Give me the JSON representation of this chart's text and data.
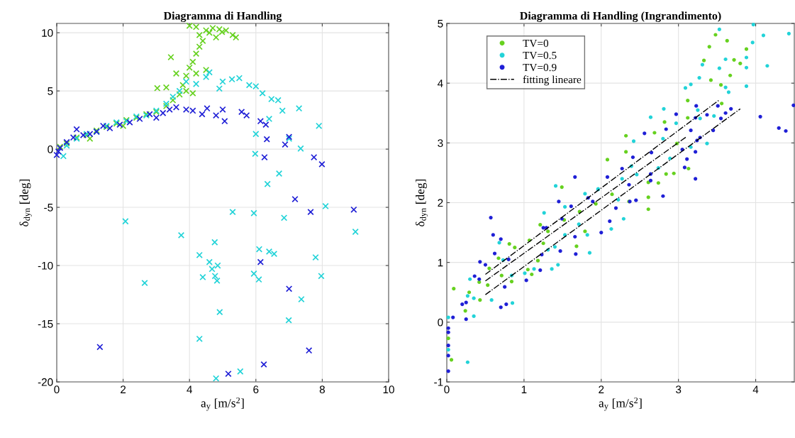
{
  "chart_data": [
    {
      "type": "scatter",
      "title": "Diagramma di Handling",
      "xlabel": "a$_{y}$ [m/s$^{2}$]",
      "ylabel": "δ$_{dyn}$ [deg]",
      "xlim": [
        0,
        10
      ],
      "ylim": [
        -20,
        10.8
      ],
      "xticks": [
        0,
        2,
        4,
        6,
        8,
        10
      ],
      "yticks": [
        -20,
        -15,
        -10,
        -5,
        0,
        5,
        10
      ],
      "grid": true,
      "legend": false,
      "marker": "cross",
      "series": [
        {
          "color": "#66d11f",
          "x": [
            0.1,
            0.3,
            0.6,
            0.9,
            1.0,
            1.2,
            1.5,
            1.8,
            2.0,
            2.1,
            2.4,
            2.7,
            3.0,
            3.03,
            3.3,
            3.3,
            3.44,
            3.5,
            3.6,
            3.7,
            3.8,
            3.9,
            3.9,
            4.0,
            4.0,
            4.1,
            4.1,
            4.2,
            4.2,
            4.2,
            4.3,
            4.3,
            4.4,
            4.5,
            4.5,
            4.6,
            4.7,
            4.8,
            4.9,
            4.98,
            5.1,
            5.3,
            5.4
          ],
          "values": [
            0.2,
            0.5,
            1.0,
            1.2,
            0.9,
            1.6,
            1.9,
            2.2,
            2.0,
            2.5,
            2.7,
            3.0,
            3.2,
            5.24,
            3.7,
            5.3,
            7.9,
            4.2,
            6.5,
            4.7,
            5.5,
            6.3,
            5.0,
            7.0,
            10.6,
            7.5,
            4.8,
            8.2,
            10.5,
            6.5,
            8.8,
            9.8,
            9.3,
            10.2,
            6.8,
            10.0,
            10.4,
            9.6,
            10.3,
            10.06,
            10.2,
            9.8,
            9.6
          ]
        },
        {
          "color": "#22d3d8",
          "x": [
            0.2,
            0.3,
            0.6,
            0.9,
            1.2,
            1.5,
            1.8,
            2.1,
            2.4,
            2.7,
            3.0,
            3.3,
            3.5,
            3.7,
            3.9,
            4.2,
            4.5,
            4.6,
            4.9,
            5.0,
            5.28,
            5.5,
            5.8,
            6.0,
            6.2,
            6.47,
            6.67,
            6.8,
            7.3,
            6.4,
            7.9,
            6.0,
            7.0,
            7.35,
            5.98,
            6.7,
            6.35,
            8.1,
            5.3,
            5.94,
            6.85,
            9.0,
            4.76,
            4.3,
            6.1,
            6.4,
            6.55,
            7.8,
            4.6,
            4.85,
            4.68,
            4.4,
            4.77,
            4.83,
            5.94,
            6.09,
            7.97,
            7.37,
            4.91,
            6.99,
            4.3,
            5.53,
            2.07,
            2.65,
            3.75,
            4.8
          ],
          "values": [
            -0.6,
            0.3,
            0.9,
            1.3,
            1.5,
            2.0,
            2.3,
            2.4,
            2.8,
            2.9,
            3.3,
            3.9,
            4.5,
            5.0,
            5.8,
            5.6,
            6.2,
            6.6,
            5.2,
            5.8,
            6.0,
            6.1,
            5.5,
            5.4,
            4.8,
            4.3,
            4.2,
            3.3,
            3.5,
            2.6,
            2.0,
            1.3,
            0.9,
            0.05,
            -0.4,
            -2.1,
            -3.0,
            -4.9,
            -5.4,
            -5.5,
            -5.9,
            -7.1,
            -8.0,
            -9.1,
            -8.6,
            -8.8,
            -9.0,
            -9.3,
            -9.7,
            -10.0,
            -10.3,
            -11.0,
            -10.9,
            -11.3,
            -10.7,
            -11.2,
            -10.9,
            -12.9,
            -14.0,
            -14.7,
            -16.3,
            -19.1,
            -6.2,
            -11.5,
            -7.4,
            -19.7
          ]
        },
        {
          "color": "#1f1fd6",
          "x": [
            0.0,
            0.05,
            0.1,
            0.3,
            0.5,
            0.6,
            0.8,
            1.0,
            1.2,
            1.4,
            1.6,
            1.9,
            2.2,
            2.5,
            2.8,
            3.0,
            3.2,
            3.4,
            3.6,
            3.9,
            4.1,
            4.38,
            4.53,
            4.8,
            5.0,
            5.06,
            5.57,
            5.72,
            6.14,
            6.3,
            6.33,
            7.0,
            6.88,
            6.26,
            7.75,
            7.99,
            7.18,
            7.65,
            8.95,
            6.14,
            7.0,
            7.6,
            6.24,
            5.17,
            1.3
          ],
          "values": [
            -0.5,
            -0.2,
            0.1,
            0.6,
            1.0,
            1.7,
            1.2,
            1.3,
            1.5,
            2.0,
            1.8,
            2.1,
            2.3,
            2.6,
            3.0,
            2.7,
            3.1,
            3.4,
            3.6,
            3.4,
            3.3,
            3.0,
            3.5,
            2.9,
            3.4,
            2.4,
            3.2,
            2.9,
            2.4,
            2.1,
            0.85,
            1.05,
            0.4,
            -0.7,
            -0.7,
            -1.3,
            -4.3,
            -5.4,
            -5.2,
            -9.7,
            -12.0,
            -17.3,
            -18.5,
            -19.3,
            -17.0
          ]
        }
      ]
    },
    {
      "type": "scatter",
      "title": "Diagramma di Handling (Ingrandimento)",
      "xlabel": "a$_{y}$ [m/s$^{2}$]",
      "ylabel": "δ$_{dyn}$ [deg]",
      "xlim": [
        0,
        4.5
      ],
      "ylim": [
        -1,
        5
      ],
      "xticks": [
        0,
        1,
        2,
        3,
        4
      ],
      "yticks": [
        -1,
        0,
        1,
        2,
        3,
        4,
        5
      ],
      "grid": true,
      "legend": "top left",
      "series": [
        {
          "name": "TV=0",
          "marker": "circle",
          "color": "#66d11f",
          "x": [
            3.48,
            3.4,
            3.63,
            3.33,
            3.72,
            3.88,
            3.8,
            3.42,
            3.55,
            3.67,
            3.12,
            3.12,
            2.98,
            3.56,
            2.82,
            2.69,
            2.32,
            2.32,
            2.08,
            2.94,
            2.84,
            2.74,
            3.13,
            2.61,
            1.49,
            0.81,
            0.88,
            0.55,
            0.42,
            0.53,
            0.84,
            0.71,
            0.67,
            0.43,
            0.29,
            0.24,
            0.09,
            0.06,
            0.02,
            1.07,
            1.21,
            1.31,
            1.25,
            1.18,
            1.1,
            1.05,
            1.68,
            1.79,
            1.72,
            1.52,
            2.36,
            2.61,
            2.61,
            2.14,
            1.93
          ],
          "values": [
            4.81,
            4.61,
            4.71,
            4.38,
            4.39,
            4.57,
            4.33,
            4.05,
            3.97,
            4.13,
            3.71,
            3.42,
            2.99,
            3.66,
            3.35,
            3.17,
            3.12,
            2.85,
            2.72,
            2.49,
            2.48,
            2.33,
            2.57,
            2.34,
            2.26,
            1.31,
            1.25,
            0.9,
            0.67,
            0.62,
            0.68,
            0.78,
            1.07,
            0.37,
            0.5,
            0.19,
            0.56,
            -0.63,
            -0.27,
            1.37,
            1.63,
            1.52,
            1.32,
            1.03,
            0.8,
            0.88,
            1.27,
            1.52,
            1.85,
            1.71,
            2.02,
            1.89,
            2.09,
            2.14,
            1.98
          ]
        },
        {
          "name": "TV=0.5",
          "marker": "circle",
          "color": "#22d3d8",
          "x": [
            3.97,
            3.53,
            4.1,
            4.43,
            3.96,
            4.15,
            3.61,
            3.88,
            3.88,
            3.53,
            3.31,
            3.27,
            3.09,
            3.16,
            3.61,
            3.88,
            3.65,
            3.46,
            3.25,
            3.28,
            3.37,
            2.81,
            2.64,
            2.97,
            2.8,
            3.16,
            2.89,
            2.42,
            2.39,
            2.74,
            2.27,
            2.46,
            1.96,
            1.41,
            1.79,
            1.26,
            1.53,
            1.53,
            1.71,
            1.82,
            1.85,
            1.4,
            1.44,
            1.36,
            1.31,
            1.13,
            1.01,
            0.68,
            0.73,
            0.84,
            0.58,
            0.85,
            0.3,
            0.35,
            0.27,
            0.35,
            0.27,
            0.02,
            0.02,
            2.29,
            2.13,
            1.96,
            2.22
          ],
          "values": [
            4.98,
            4.9,
            4.8,
            4.83,
            4.68,
            4.29,
            4.4,
            4.43,
            4.26,
            4.25,
            4.31,
            4.09,
            3.92,
            3.98,
            3.93,
            3.95,
            3.85,
            3.45,
            3.55,
            3.41,
            2.99,
            3.57,
            3.43,
            3.33,
            3.07,
            2.93,
            2.74,
            3.03,
            2.61,
            2.58,
            2.4,
            2.47,
            2.22,
            2.28,
            2.15,
            1.83,
            1.93,
            1.46,
            1.64,
            1.46,
            1.16,
            1.26,
            0.96,
            0.89,
            1.21,
            0.89,
            0.82,
            1.33,
            1.04,
            0.78,
            0.37,
            0.32,
            0.72,
            0.4,
            0.44,
            0.1,
            -0.67,
            0.08,
            -0.46,
            1.73,
            1.56,
            2.23,
            2.05
          ]
        },
        {
          "name": "TV=0.9",
          "marker": "circle",
          "color": "#1f1fd6",
          "x": [
            4.49,
            4.06,
            4.3,
            4.39,
            3.68,
            3.61,
            3.51,
            3.55,
            3.37,
            3.23,
            3.22,
            3.16,
            3.28,
            3.24,
            3.22,
            3.45,
            3.05,
            3.11,
            3.08,
            3.22,
            2.97,
            2.84,
            2.56,
            2.65,
            2.41,
            2.64,
            2.64,
            2.27,
            2.08,
            2.36,
            1.66,
            2.8,
            1.45,
            1.49,
            1.61,
            1.66,
            1.67,
            1.47,
            1.25,
            1.29,
            1.23,
            1.21,
            1.03,
            2.0,
            2.11,
            2.19,
            1.83,
            1.89,
            2.37,
            2.45,
            0.57,
            0.6,
            0.7,
            0.62,
            0.8,
            0.43,
            0.5,
            0.36,
            0.42,
            0.75,
            0.7,
            0.77,
            0.25,
            0.2,
            0.25,
            0.08,
            0.02,
            0.02,
            0.02,
            0.02,
            0.02
          ],
          "values": [
            3.63,
            3.44,
            3.25,
            3.2,
            3.57,
            3.5,
            3.62,
            3.41,
            3.47,
            3.62,
            3.42,
            3.21,
            3.09,
            3.04,
            2.85,
            3.21,
            2.89,
            2.73,
            2.59,
            2.4,
            3.48,
            3.23,
            3.16,
            2.84,
            2.76,
            2.48,
            2.37,
            2.57,
            2.43,
            2.3,
            2.43,
            2.11,
            2.02,
            1.73,
            1.94,
            1.43,
            1.14,
            1.19,
            1.58,
            1.58,
            1.13,
            0.87,
            0.7,
            1.5,
            1.69,
            1.91,
            2.08,
            2.02,
            2.02,
            2.04,
            1.75,
            1.46,
            1.39,
            1.15,
            1.05,
            1.01,
            0.96,
            0.77,
            0.72,
            0.59,
            0.25,
            0.3,
            0.33,
            0.3,
            0.05,
            0.08,
            -0.1,
            -0.17,
            -0.39,
            -0.56,
            -0.82
          ]
        },
        {
          "type": "line",
          "name": "fitting lineare",
          "color": "#000000",
          "line_style": "dashdot",
          "x": [
            0.5,
            3.52
          ],
          "values": [
            0.8,
            3.71
          ]
        },
        {
          "type": "line",
          "color": "#000000",
          "line_style": "dashdot",
          "x": [
            0.5,
            3.1
          ],
          "values": [
            0.69,
            3.1
          ]
        },
        {
          "type": "line",
          "color": "#000000",
          "line_style": "dashdot",
          "x": [
            0.5,
            3.8
          ],
          "values": [
            0.46,
            3.57
          ]
        }
      ]
    }
  ]
}
